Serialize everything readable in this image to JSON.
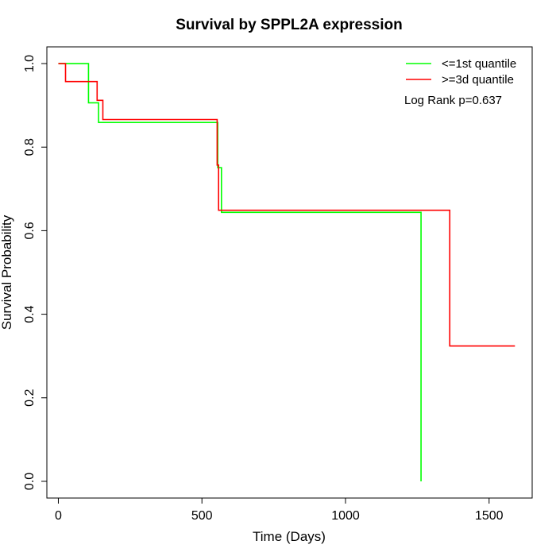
{
  "chart_data": {
    "type": "line",
    "subtype": "kaplan-meier-step",
    "title": "Survival by SPPL2A expression",
    "xlabel": "Time (Days)",
    "ylabel": "Survival Probability",
    "xlim": [
      -40,
      1650
    ],
    "ylim": [
      -0.04,
      1.04
    ],
    "x_ticks": [
      0,
      500,
      1000,
      1500
    ],
    "x_tick_labels": [
      "0",
      "500",
      "1000",
      "1500"
    ],
    "y_ticks": [
      0.0,
      0.2,
      0.4,
      0.6,
      0.8,
      1.0
    ],
    "y_tick_labels": [
      "0.0",
      "0.2",
      "0.4",
      "0.6",
      "0.8",
      "1.0"
    ],
    "grid": false,
    "legend_position": "top-right",
    "annotation": "Log Rank p=0.637",
    "series": [
      {
        "name": "<=1st quantile",
        "color": "#00ff00",
        "x": [
          0,
          105,
          105,
          130,
          130,
          140,
          140,
          555,
          555,
          568,
          568,
          1263,
          1263
        ],
        "y": [
          1.0,
          1.0,
          0.906,
          0.906,
          0.906,
          0.906,
          0.859,
          0.859,
          0.751,
          0.751,
          0.644,
          0.644,
          0.0
        ]
      },
      {
        "name": ">=3d quantile",
        "color": "#ff0000",
        "x": [
          0,
          25,
          25,
          135,
          135,
          155,
          155,
          553,
          553,
          558,
          558,
          1363,
          1363,
          1590
        ],
        "y": [
          1.0,
          1.0,
          0.957,
          0.957,
          0.912,
          0.912,
          0.866,
          0.866,
          0.757,
          0.757,
          0.649,
          0.649,
          0.324,
          0.324
        ]
      }
    ]
  }
}
